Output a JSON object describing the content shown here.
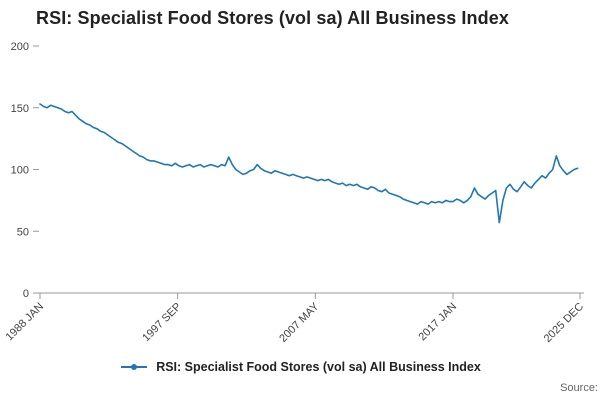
{
  "title": "RSI: Specialist Food Stores (vol sa) All Business Index",
  "legend": {
    "label": "RSI: Specialist Food Stores (vol sa) All Business Index"
  },
  "source_label": "Source:",
  "colors": {
    "line": "#1f77b4",
    "axis": "#999999",
    "tick_label": "#444444"
  },
  "chart_data": {
    "type": "line",
    "title": "RSI: Specialist Food Stores (vol sa) All Business Index",
    "xlabel": "",
    "ylabel": "",
    "ylim": [
      0,
      200
    ],
    "y_ticks": [
      0,
      50,
      100,
      150,
      200
    ],
    "x_tick_labels": [
      "1988 JAN",
      "1997 SEP",
      "2007 MAY",
      "2017 JAN",
      "2025 DEC"
    ],
    "x_tick_month_index": [
      0,
      116,
      232,
      348,
      455
    ],
    "x_total_months": 456,
    "grid": false,
    "legend_position": "bottom",
    "series": [
      {
        "name": "RSI: Specialist Food Stores (vol sa) All Business Index",
        "start": "1988 JAN",
        "step_months": 3,
        "values": [
          153,
          151,
          150,
          152,
          151,
          150,
          149,
          147,
          146,
          147,
          144,
          141,
          139,
          137,
          136,
          134,
          133,
          131,
          130,
          128,
          126,
          124,
          122,
          121,
          119,
          117,
          115,
          113,
          111,
          110,
          108,
          107,
          107,
          106,
          105,
          104,
          104,
          103,
          105,
          103,
          102,
          103,
          104,
          102,
          103,
          104,
          102,
          103,
          104,
          103,
          102,
          104,
          103,
          110,
          104,
          100,
          98,
          96,
          97,
          99,
          100,
          104,
          101,
          99,
          98,
          97,
          99,
          98,
          97,
          96,
          95,
          96,
          95,
          94,
          93,
          94,
          93,
          92,
          91,
          92,
          91,
          92,
          90,
          89,
          88,
          89,
          87,
          88,
          87,
          88,
          86,
          85,
          84,
          86,
          85,
          83,
          82,
          84,
          81,
          80,
          79,
          78,
          76,
          75,
          74,
          73,
          72,
          74,
          73,
          72,
          74,
          73,
          74,
          73,
          75,
          74,
          74,
          76,
          75,
          73,
          75,
          78,
          85,
          80,
          78,
          76,
          79,
          81,
          83,
          57,
          75,
          85,
          88,
          84,
          82,
          86,
          90,
          87,
          85,
          89,
          92,
          95,
          93,
          97,
          100,
          111,
          103,
          99,
          96,
          98,
          100,
          101
        ]
      }
    ]
  }
}
